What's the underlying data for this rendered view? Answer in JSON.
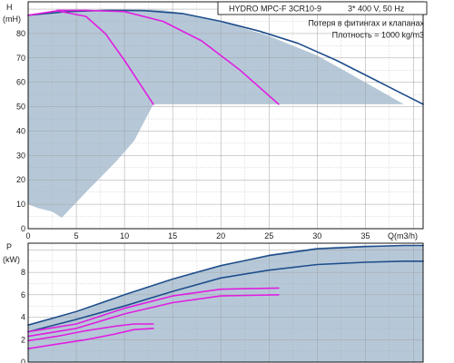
{
  "header": {
    "model": "HYDRO MPC-F 3CR10-9",
    "supply": "3* 400 V, 50 Hz",
    "note_line1": "Потеря в фитингах и клапанах",
    "note_line2": "Плотность = 1000 kg/m3"
  },
  "colors": {
    "envelope_fill": "#b6c8d8",
    "curve_blue": "#1f4e8c",
    "curve_magenta": "#e01ee0",
    "grid": "#a0a0a0",
    "axis": "#000000"
  },
  "chart_data": [
    {
      "name": "head",
      "type": "line",
      "ylabel": "H",
      "ylabel_unit": "(mH)",
      "xlabel": "Q(m3/h)",
      "xlim": [
        0,
        41
      ],
      "ylim": [
        0,
        93
      ],
      "x_ticks": [
        0,
        5,
        10,
        15,
        20,
        25,
        30,
        35
      ],
      "y_ticks": [
        0,
        10,
        20,
        30,
        40,
        50,
        60,
        70,
        80
      ],
      "grid": true,
      "envelope": {
        "x": [
          0,
          1,
          3,
          5,
          8,
          10,
          12,
          13,
          14,
          16,
          20,
          25,
          30,
          35,
          39,
          41.5,
          39,
          35,
          30,
          25,
          20,
          15,
          13,
          12.2,
          11,
          9,
          6,
          3.5,
          2.5,
          1,
          0
        ],
        "y": [
          87.5,
          88,
          89.5,
          89.5,
          89.5,
          89.8,
          89.8,
          89.8,
          89.6,
          88.5,
          85,
          79,
          71,
          60,
          51,
          51,
          51,
          51,
          51,
          51,
          51,
          51,
          51,
          45,
          36,
          27,
          15,
          4.5,
          7,
          8.5,
          10
        ]
      },
      "series": [
        {
          "color_key": "curve_blue",
          "x": [
            0,
            4,
            8,
            12,
            16,
            20,
            24,
            28,
            32,
            36,
            39,
            41.5
          ],
          "y": [
            87.5,
            89,
            89.5,
            89.4,
            88.2,
            85,
            81,
            76,
            69,
            61,
            55,
            51
          ]
        },
        {
          "color_key": "curve_magenta",
          "x": [
            0,
            3,
            6,
            8,
            10,
            11.5,
            13
          ],
          "y": [
            87.5,
            89.3,
            87,
            80,
            69,
            60,
            51
          ]
        },
        {
          "color_key": "curve_magenta",
          "x": [
            3,
            6,
            10,
            14,
            18,
            22,
            26
          ],
          "y": [
            89.5,
            89.5,
            89,
            85,
            77,
            65,
            51
          ]
        }
      ]
    },
    {
      "name": "power",
      "type": "line",
      "ylabel": "P",
      "ylabel_unit": "(kW)",
      "xlabel": "",
      "xlim": [
        0,
        41
      ],
      "ylim": [
        0,
        10.6
      ],
      "x_ticks": [],
      "y_ticks": [
        0,
        2,
        4,
        6,
        8
      ],
      "grid": true,
      "envelope": {
        "x": [
          0,
          5,
          10,
          15,
          20,
          25,
          30,
          35,
          39,
          42,
          42,
          39,
          35,
          30,
          25,
          20,
          15,
          12.5,
          10,
          5,
          0
        ],
        "y": [
          3.3,
          4.4,
          6.0,
          7.4,
          8.6,
          9.6,
          10.2,
          10.4,
          10.4,
          10.4,
          0,
          0,
          0,
          0,
          0,
          0,
          0,
          0,
          0,
          0,
          0
        ]
      },
      "series": [
        {
          "color_key": "curve_blue",
          "x": [
            0,
            5,
            10,
            15,
            20,
            25,
            30,
            35,
            39,
            42
          ],
          "y": [
            3.3,
            4.5,
            6.0,
            7.4,
            8.6,
            9.5,
            10.1,
            10.3,
            10.4,
            10.4
          ]
        },
        {
          "color_key": "curve_blue",
          "x": [
            0,
            5,
            10,
            15,
            20,
            25,
            30,
            35,
            39,
            42
          ],
          "y": [
            2.7,
            3.8,
            5.0,
            6.3,
            7.5,
            8.2,
            8.7,
            8.9,
            9.0,
            9.0
          ]
        },
        {
          "color_key": "curve_magenta",
          "x": [
            0,
            5,
            10,
            15,
            20,
            26
          ],
          "y": [
            2.7,
            3.4,
            4.8,
            5.9,
            6.5,
            6.6
          ]
        },
        {
          "color_key": "curve_magenta",
          "x": [
            0,
            5,
            10,
            15,
            20,
            26
          ],
          "y": [
            2.3,
            3.0,
            4.3,
            5.3,
            5.9,
            6.0
          ]
        },
        {
          "color_key": "curve_magenta",
          "x": [
            0,
            3,
            6,
            9,
            11,
            13
          ],
          "y": [
            1.9,
            2.3,
            2.8,
            3.2,
            3.4,
            3.4
          ]
        },
        {
          "color_key": "curve_magenta",
          "x": [
            0,
            3,
            6,
            9,
            11,
            13
          ],
          "y": [
            1.2,
            1.6,
            2.0,
            2.5,
            2.9,
            3.0
          ]
        }
      ]
    }
  ]
}
